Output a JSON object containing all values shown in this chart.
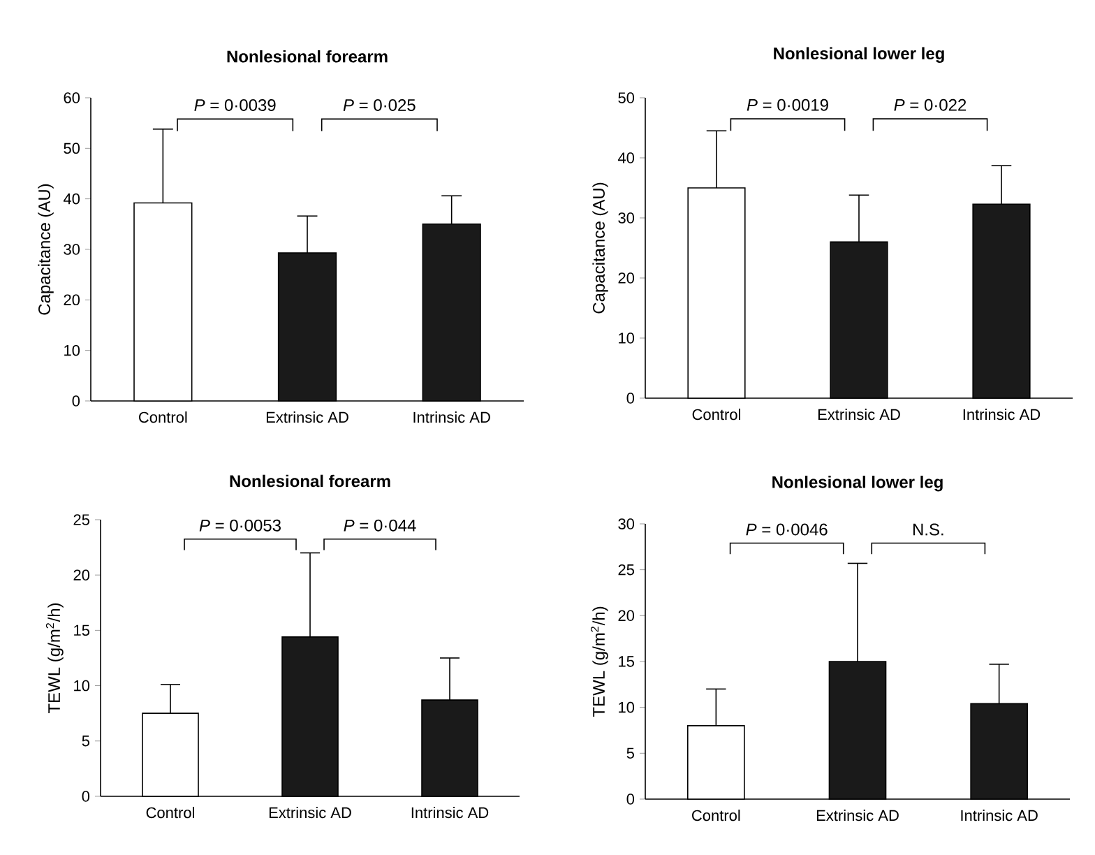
{
  "chart_data": [
    {
      "type": "bar",
      "title": "Nonlesional forearm",
      "ylabel": "Capacitance (AU)",
      "categories": [
        "Control",
        "Extrinsic AD",
        "Intrinsic AD"
      ],
      "values": [
        39.2,
        29.3,
        35
      ],
      "colors": [
        "#ffffff",
        "#1a1a1a",
        "#1a1a1a"
      ],
      "errors": [
        [
          39.2,
          53.8
        ],
        [
          29.3,
          36.6
        ],
        [
          35,
          40.6
        ]
      ],
      "ylim": [
        0,
        60
      ],
      "yticks": [
        0,
        10,
        20,
        30,
        40,
        50,
        60
      ],
      "annotations": [
        "*P* = 0·0039",
        "*P* = 0·025"
      ]
    },
    {
      "type": "bar",
      "title": "Nonlesional lower leg",
      "ylabel": "Capacitance (AU)",
      "categories": [
        "Control",
        "Extrinsic AD",
        "Intrinsic AD"
      ],
      "values": [
        35,
        26,
        32.3
      ],
      "colors": [
        "#ffffff",
        "#1a1a1a",
        "#1a1a1a"
      ],
      "errors": [
        [
          35,
          44.5
        ],
        [
          26,
          33.8
        ],
        [
          32.3,
          38.7
        ]
      ],
      "ylim": [
        0,
        50
      ],
      "yticks": [
        0,
        10,
        20,
        30,
        40,
        50
      ],
      "annotations": [
        "*P* = 0·0019",
        "*P* = 0·022"
      ]
    },
    {
      "type": "bar",
      "title": "Nonlesional forearm",
      "ylabel": "TEWL (g/m$^{2}$/h)",
      "categories": [
        "Control",
        "Extrinsic AD",
        "Intrinsic AD"
      ],
      "values": [
        7.5,
        14.4,
        8.7
      ],
      "colors": [
        "#ffffff",
        "#1a1a1a",
        "#1a1a1a"
      ],
      "errors": [
        [
          7.5,
          10.1
        ],
        [
          14.4,
          22
        ],
        [
          8.7,
          12.5
        ]
      ],
      "ylim": [
        0,
        25
      ],
      "yticks": [
        0,
        5,
        10,
        15,
        20,
        25
      ],
      "annotations": [
        "*P* = 0·0053",
        "*P* = 0·044"
      ]
    },
    {
      "type": "bar",
      "title": "Nonlesional lower leg",
      "ylabel": "TEWL (g/m$^{2}$/h)",
      "categories": [
        "Control",
        "Extrinsic AD",
        "Intrinsic AD"
      ],
      "values": [
        8,
        15,
        10.4
      ],
      "colors": [
        "#ffffff",
        "#1a1a1a",
        "#1a1a1a"
      ],
      "errors": [
        [
          8,
          12
        ],
        [
          15,
          25.7
        ],
        [
          10.4,
          14.7
        ]
      ],
      "ylim": [
        0,
        30
      ],
      "yticks": [
        0,
        5,
        10,
        15,
        20,
        25,
        30
      ],
      "annotations": [
        "*P* = 0·0046",
        "N.S."
      ]
    }
  ]
}
